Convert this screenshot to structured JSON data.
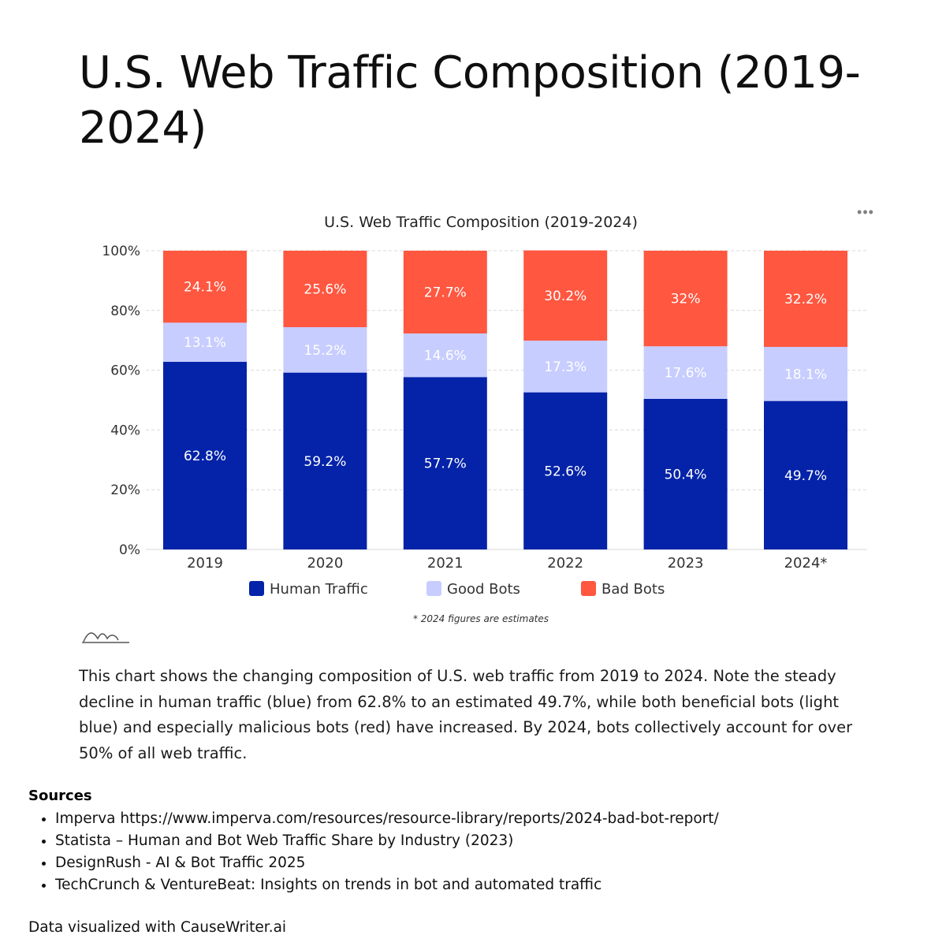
{
  "page": {
    "title": "U.S. Web Traffic Composition (2019-2024)",
    "description": "This chart shows the changing composition of U.S. web traffic from 2019 to 2024. Note the steady decline in human traffic (blue) from 62.8% to an estimated 49.7%, while both beneficial bots (light blue) and especially malicious bots (red) have increased. By 2024, bots collectively account for over 50% of all web traffic.",
    "more_options_icon": "more-horizontal-icon",
    "logo_icon": "chart-logo-icon"
  },
  "chart_data": {
    "type": "bar",
    "stacked": true,
    "title": "U.S. Web Traffic Composition (2019-2024)",
    "categories": [
      "2019",
      "2020",
      "2021",
      "2022",
      "2023",
      "2024*"
    ],
    "series": [
      {
        "name": "Human Traffic",
        "color": "#0423a8",
        "label_color": "#ffffff",
        "values": [
          62.8,
          59.2,
          57.7,
          52.6,
          50.4,
          49.7
        ]
      },
      {
        "name": "Good Bots",
        "color": "#c7cdff",
        "label_color": "#ffffff",
        "values": [
          13.1,
          15.2,
          14.6,
          17.3,
          17.6,
          18.1
        ]
      },
      {
        "name": "Bad Bots",
        "color": "#ff5740",
        "label_color": "#ffffff",
        "values": [
          24.1,
          25.6,
          27.7,
          30.2,
          32,
          32.2
        ]
      }
    ],
    "ylim": [
      0,
      100
    ],
    "yticks": [
      "0%",
      "20%",
      "40%",
      "60%",
      "80%",
      "100%"
    ],
    "ytick_values": [
      0,
      20,
      40,
      60,
      80,
      100
    ],
    "xlabel": "",
    "ylabel": "",
    "grid": true,
    "legend_position": "bottom",
    "footnote": "* 2024 figures are estimates"
  },
  "sources": {
    "heading": "Sources",
    "items": [
      "Imperva https://www.imperva.com/resources/resource-library/reports/2024-bad-bot-report/",
      "Statista – Human and Bot Web Traffic Share by Industry (2023)",
      "DesignRush - AI & Bot Traffic 2025",
      "TechCrunch & VentureBeat: Insights on trends in bot and automated traffic"
    ]
  },
  "footer": {
    "credit": "Data visualized with CauseWriter.ai"
  }
}
